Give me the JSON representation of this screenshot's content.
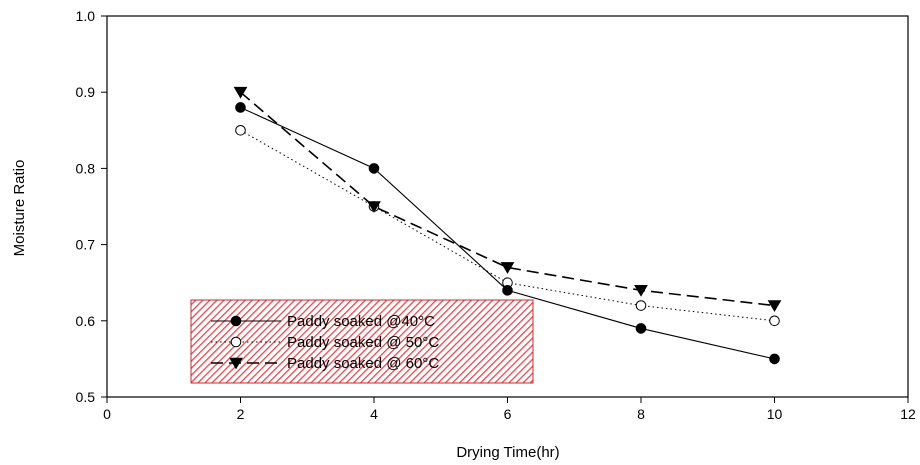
{
  "chart_data": {
    "type": "line",
    "xlabel": "Drying Time(hr)",
    "ylabel": "Moisture Ratio",
    "xlim": [
      0,
      12
    ],
    "ylim": [
      0.5,
      1.0
    ],
    "xticks": [
      0,
      2,
      4,
      6,
      8,
      10,
      12
    ],
    "yticks": [
      0.5,
      0.6,
      0.7,
      0.8,
      0.9,
      1.0
    ],
    "xtick_labels": [
      "0",
      "2",
      "4",
      "6",
      "8",
      "10",
      "12"
    ],
    "ytick_labels": [
      "0.5",
      "0.6",
      "0.7",
      "0.8",
      "0.9",
      "1.0"
    ],
    "grid": false,
    "legend_position": "bottom-left",
    "legend_background": "#e8484f",
    "series": [
      {
        "name": "Paddy soaked  @40°C",
        "marker": "filled-circle",
        "line_style": "solid",
        "color": "#000000",
        "x": [
          2,
          4,
          6,
          8,
          10
        ],
        "y": [
          0.88,
          0.8,
          0.64,
          0.59,
          0.55
        ]
      },
      {
        "name": "Paddy soaked  @  50°C",
        "marker": "open-circle",
        "line_style": "dotted",
        "color": "#000000",
        "x": [
          2,
          4,
          6,
          8,
          10
        ],
        "y": [
          0.85,
          0.75,
          0.65,
          0.62,
          0.6
        ]
      },
      {
        "name": "Paddy soaked  @  60°C",
        "marker": "filled-triangle-down",
        "line_style": "dashed",
        "color": "#000000",
        "x": [
          2,
          4,
          6,
          8,
          10
        ],
        "y": [
          0.9,
          0.75,
          0.67,
          0.64,
          0.62
        ]
      }
    ]
  }
}
